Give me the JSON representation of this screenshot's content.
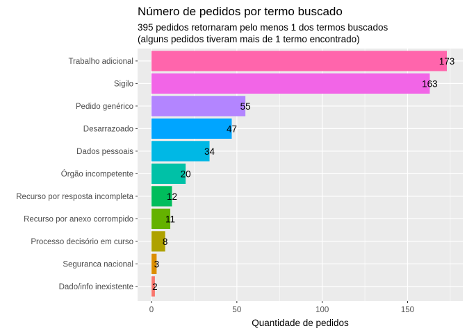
{
  "chart_data": {
    "type": "bar",
    "orientation": "horizontal",
    "title": "Número de pedidos por termo buscado",
    "subtitle_lines": [
      "395 pedidos retornaram pelo menos 1 dos termos buscados",
      "(alguns pedidos tiveram mais de 1 termo encontrado)"
    ],
    "xlabel": "Quantidade de pedidos",
    "ylabel": "",
    "xlim": [
      0,
      180
    ],
    "x_ticks": [
      0,
      50,
      100,
      150
    ],
    "x_tick_labels": [
      "0",
      "50",
      "100",
      "150"
    ],
    "grid": true,
    "legend": "none",
    "categories": [
      "Trabalho adicional",
      "Sigilo",
      "Pedido genérico",
      "Desarrazoado",
      "Dados pessoais",
      "Órgão incompetente",
      "Recurso por resposta incompleta",
      "Recurso por anexo corrompido",
      "Processo decisório em curso",
      "Seguranca nacional",
      "Dado/info inexistente"
    ],
    "values": [
      173,
      163,
      55,
      47,
      34,
      20,
      12,
      11,
      8,
      3,
      2
    ],
    "value_labels": [
      "173",
      "163",
      "55",
      "47",
      "34",
      "20",
      "12",
      "11",
      "8",
      "3",
      "2"
    ],
    "colors": [
      "#FF65AC",
      "#F265E7",
      "#B385FF",
      "#00A5FF",
      "#00B8E5",
      "#00C1A7",
      "#00BD5C",
      "#64B200",
      "#AEA200",
      "#DB8E00",
      "#F8766D"
    ],
    "panel_background": "#EBEBEB",
    "grid_color": "#FFFFFF"
  }
}
